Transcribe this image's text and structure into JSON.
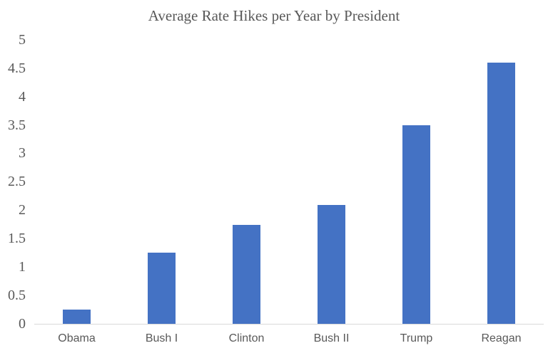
{
  "chart_data": {
    "type": "bar",
    "title": "Average Rate Hikes per Year by President",
    "categories": [
      "Obama",
      "Bush I",
      "Clinton",
      "Bush II",
      "Trump",
      "Reagan"
    ],
    "values": [
      0.25,
      1.25,
      1.75,
      2.1,
      3.5,
      4.6
    ],
    "xlabel": "",
    "ylabel": "",
    "ylim": [
      0,
      5
    ],
    "ytick_step": 0.5,
    "ytick_labels": [
      "0",
      "0.5",
      "1",
      "1.5",
      "2",
      "2.5",
      "3",
      "3.5",
      "4",
      "4.5",
      "5"
    ],
    "grid": false,
    "legend": false,
    "bar_color": "#4472C4",
    "axis_line_color": "#D9D9D9",
    "text_color": "#595959",
    "background_color": "#FFFFFF"
  }
}
